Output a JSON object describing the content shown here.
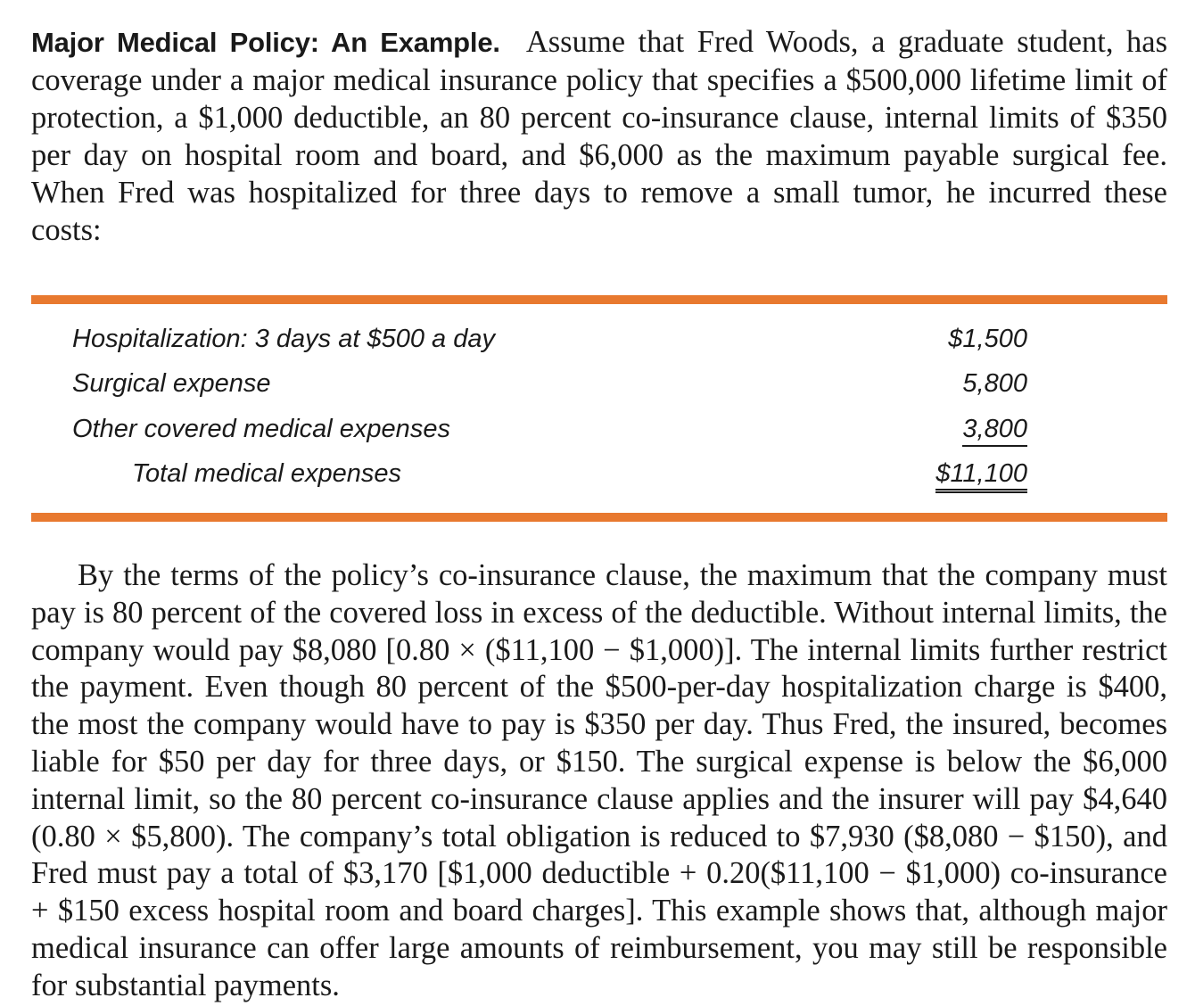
{
  "intro": {
    "heading": "Major Medical Policy: An Example.",
    "text": "Assume that Fred Woods, a graduate stu­dent, has coverage under a major medical insurance policy that specifies a $500,000 lifetime limit of protection, a $1,000 deductible, an 80 percent co-insurance clause, internal limits of $350 per day on hospital room and board, and $6,000 as the maxi­mum payable surgical fee. When Fred was hospitalized for three days to remove a small tumor, he incurred these costs:"
  },
  "costs_table": {
    "rows": [
      {
        "label": "Hospitalization: 3 days at $500 a day",
        "amount": "$1,500"
      },
      {
        "label": "Surgical expense",
        "amount": "5,800"
      },
      {
        "label": "Other covered medical expenses",
        "amount": "3,800"
      }
    ],
    "total": {
      "label": "Total medical expenses",
      "amount": "$11,100"
    },
    "rule_color": "#e8792f"
  },
  "body": {
    "paragraph": "By the terms of the policy’s co-insurance clause, the maximum that the company must pay is 80 percent of the covered loss in excess of the deductible. Without internal limits, the company would pay $8,080 [0.80 × ($11,100 − $1,000)]. The internal lim­its further restrict the payment. Even though 80 percent of the $500-per-day hospital­ization charge is $400, the most the company would have to pay is $350 per day. Thus Fred, the insured, becomes liable for $50 per day for three days, or $150. The surgical expense is below the $6,000 internal limit, so the 80 percent co-insurance clause applies and the insurer will pay $4,640 (0.80 × $5,800). The company’s total obligation is reduced to $7,930 ($8,080 − $150), and Fred must pay a total of $3,170 [$1,000 deductible + 0.20($11,100 − $1,000) co-insurance + $150 excess hospital room and board charges]. This example shows that, although major medical insurance can offer large amounts of reimbursement, you may still be responsible for substantial payments."
  }
}
